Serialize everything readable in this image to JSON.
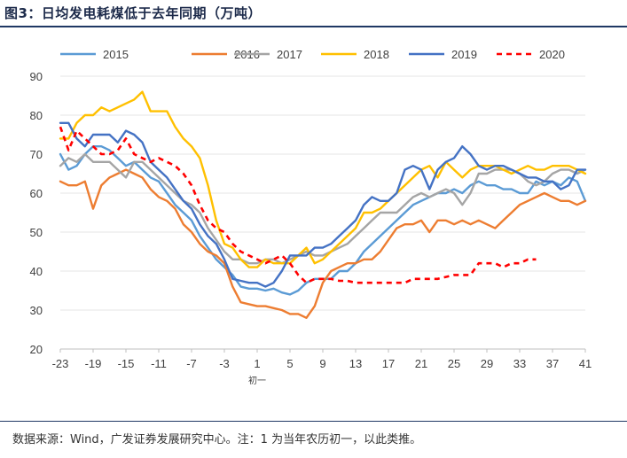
{
  "header": {
    "title": "图3：日均发电耗煤低于去年同期（万吨）"
  },
  "footer": {
    "source": "数据来源：Wind，广发证券发展研究中心。注：1 为当年农历初一，以此类推。"
  },
  "chart_data": {
    "type": "line",
    "title": "日均发电耗煤低于去年同期（万吨）",
    "xlabel": "",
    "ylabel": "",
    "x": [
      -23,
      -22,
      -21,
      -20,
      -19,
      -18,
      -17,
      -16,
      -15,
      -14,
      -13,
      -12,
      -11,
      -10,
      -9,
      -8,
      -7,
      -6,
      -5,
      -4,
      -3,
      -2,
      -1,
      0,
      1,
      2,
      3,
      4,
      5,
      6,
      7,
      8,
      9,
      10,
      11,
      12,
      13,
      14,
      15,
      16,
      17,
      18,
      19,
      20,
      21,
      22,
      23,
      24,
      25,
      26,
      27,
      28,
      29,
      30,
      31,
      32,
      33,
      34,
      35,
      36,
      37,
      38,
      39,
      40,
      41
    ],
    "xticks": [
      -23,
      -19,
      -15,
      -11,
      -7,
      -3,
      1,
      5,
      9,
      13,
      17,
      21,
      25,
      29,
      33,
      37,
      41
    ],
    "xlim": [
      -23,
      41
    ],
    "yticks": [
      20,
      30,
      40,
      50,
      60,
      70,
      80,
      90
    ],
    "ylim": [
      20,
      90
    ],
    "annotation": {
      "x": 1,
      "text": "初一"
    },
    "legend_position": "top",
    "series": [
      {
        "name": "2015",
        "color": "#5b9bd5",
        "dash": false,
        "values": [
          70,
          66,
          67,
          70,
          72,
          72,
          71,
          69,
          67,
          68,
          66,
          64,
          63,
          60,
          57,
          55,
          53,
          49,
          46,
          43,
          41,
          39,
          36,
          35.5,
          35.5,
          35,
          35.5,
          34.5,
          34,
          35,
          37,
          38,
          38,
          38,
          40,
          40,
          42,
          45,
          47,
          49,
          51,
          53,
          55,
          57,
          58,
          59,
          60,
          60,
          61,
          60,
          62,
          63,
          62,
          62,
          61,
          61,
          60,
          60,
          63,
          62,
          63,
          62,
          64,
          63,
          58
        ]
      },
      {
        "name": "2016",
        "color": "#ed7d31",
        "dash": false,
        "values": [
          63,
          62,
          62,
          63,
          56,
          62,
          64,
          65,
          66,
          65,
          64,
          61,
          59,
          58,
          56,
          52,
          50,
          47,
          45,
          44,
          42,
          36,
          32,
          31.5,
          31,
          31,
          30.5,
          30,
          29,
          29,
          28,
          31,
          37,
          40,
          41,
          42,
          42,
          43,
          43,
          45,
          48,
          51,
          52,
          52,
          53,
          50,
          53,
          53,
          52,
          53,
          52,
          53,
          52,
          51,
          53,
          55,
          57,
          58,
          59,
          60,
          59,
          58,
          58,
          57,
          58
        ]
      },
      {
        "name": "2017",
        "color": "#a5a5a5",
        "dash": false,
        "values": [
          67,
          69,
          68,
          70,
          68,
          68,
          68,
          66,
          64,
          68,
          68,
          66,
          64,
          62,
          60,
          58,
          57,
          55,
          51,
          48,
          45,
          43,
          43,
          42,
          42,
          43,
          43,
          42,
          43,
          44,
          45,
          44,
          44,
          45,
          46,
          47,
          49,
          51,
          53,
          55,
          55,
          55,
          57,
          59,
          60,
          59,
          60,
          61,
          60,
          57,
          60,
          65,
          65,
          66,
          66,
          66,
          65,
          63,
          62,
          63,
          65,
          66,
          66,
          65,
          66
        ]
      },
      {
        "name": "2018",
        "color": "#ffc000",
        "dash": false,
        "values": [
          74,
          74,
          78,
          80,
          80,
          82,
          81,
          82,
          83,
          84,
          86,
          81,
          81,
          81,
          77,
          74,
          72,
          69,
          62,
          53,
          47,
          46,
          43,
          41,
          41,
          43,
          42,
          42,
          42,
          44,
          46,
          42,
          43,
          45,
          47,
          49,
          51,
          55,
          55,
          56,
          58,
          60,
          62,
          64,
          66,
          67,
          64,
          68,
          66,
          64,
          66,
          67,
          67,
          67,
          66,
          65,
          66,
          67,
          66,
          66,
          67,
          67,
          67,
          66,
          65
        ]
      },
      {
        "name": "2019",
        "color": "#4472c4",
        "dash": false,
        "values": [
          78,
          78,
          74,
          72,
          75,
          75,
          75,
          73,
          76,
          75,
          73,
          68,
          66,
          64,
          61,
          58,
          56,
          52,
          49,
          47,
          43,
          38,
          37.5,
          37,
          37,
          36,
          37,
          40,
          44,
          44,
          44,
          46,
          46,
          47,
          49,
          51,
          53,
          57,
          59,
          58,
          58,
          60,
          66,
          67,
          66,
          61,
          66,
          68,
          69,
          72,
          70,
          67,
          66,
          67,
          67,
          66,
          65,
          64,
          64,
          63,
          63,
          61,
          62,
          66,
          66
        ]
      },
      {
        "name": "2020",
        "color": "#ff0000",
        "dash": true,
        "values": [
          77,
          71,
          76,
          74,
          72,
          70,
          70,
          71,
          74,
          70,
          69,
          68,
          69,
          68,
          67,
          65,
          62,
          57,
          53,
          51,
          50,
          47,
          45,
          44,
          43,
          42,
          43,
          44,
          42,
          39,
          37,
          38,
          38,
          38,
          37.5,
          37.5,
          37,
          37,
          37,
          37,
          37,
          37,
          37,
          38,
          38,
          38,
          38,
          38.5,
          39,
          39,
          39,
          42,
          42,
          42,
          41,
          42,
          42,
          43,
          43,
          null,
          null,
          null,
          null,
          null,
          null
        ]
      }
    ]
  }
}
